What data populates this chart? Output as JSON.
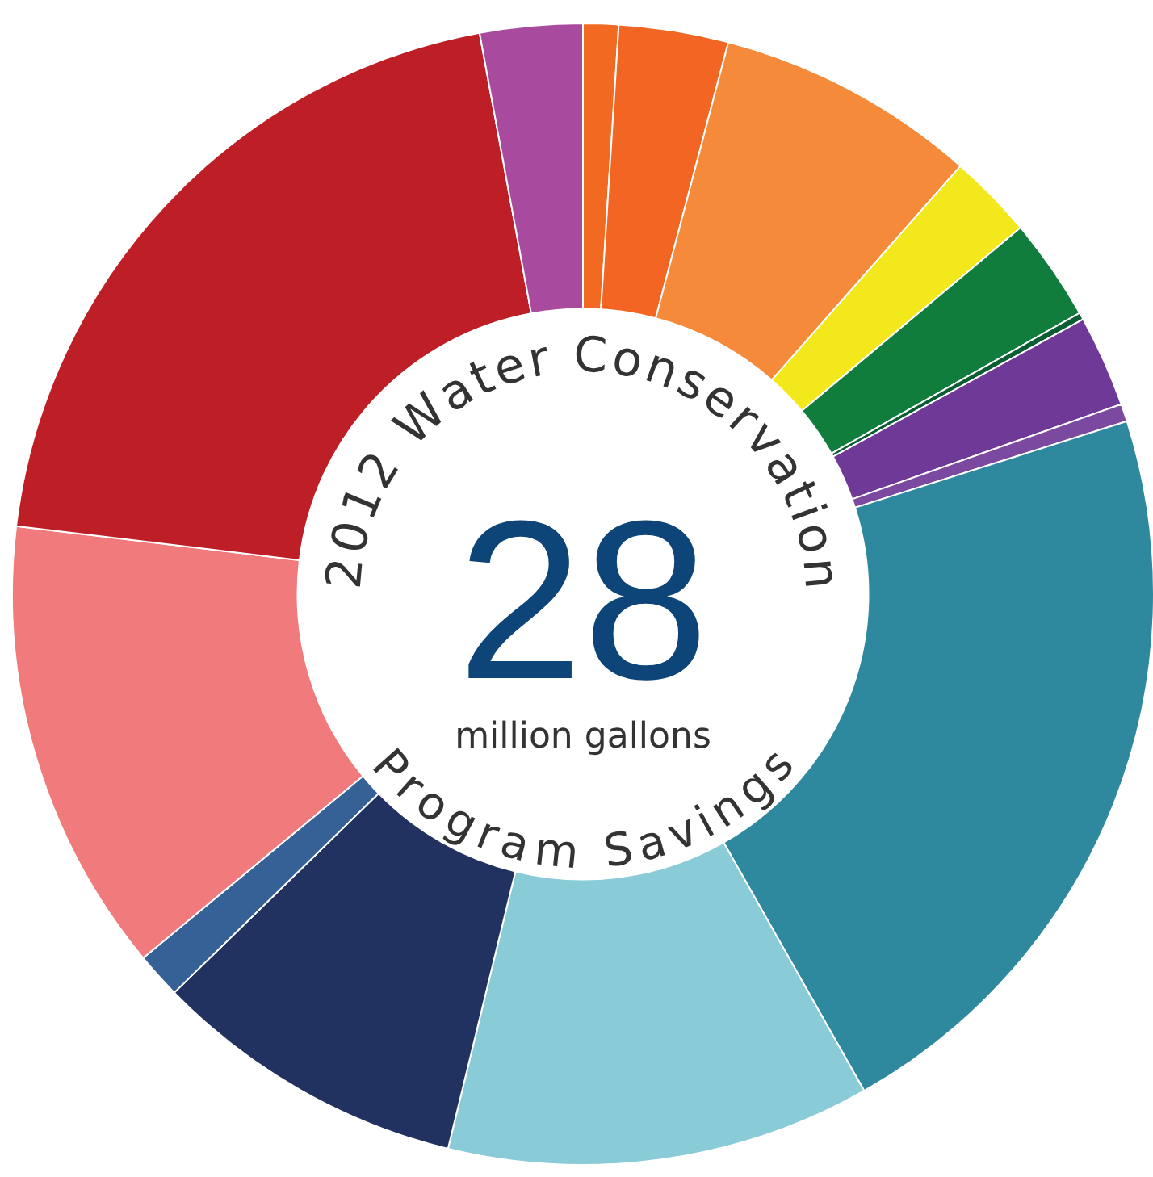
{
  "chart_data": {
    "type": "donut",
    "title": "2012 Water Conservation",
    "subtitle": "Program Savings",
    "annotations": [
      "28",
      "million gallons"
    ],
    "categories": [
      null,
      null,
      null,
      null,
      null,
      null,
      null,
      null,
      null,
      null,
      null,
      null,
      null,
      null,
      null
    ],
    "values": [
      1.0,
      3.1,
      7.4,
      2.4,
      2.9,
      0.2,
      2.6,
      0.5,
      21.7,
      12.0,
      8.9,
      1.3,
      12.9,
      20.2,
      2.9
    ],
    "colors": [
      "#f26a21",
      "#f26522",
      "#f58a3a",
      "#f2e81c",
      "#117d3d",
      "#0b5e34",
      "#6f3a97",
      "#7b4aa0",
      "#2e889e",
      "#8acbd8",
      "#213261",
      "#366196",
      "#f07a7c",
      "#be1e26",
      "#a84b9e"
    ],
    "legend": false
  }
}
